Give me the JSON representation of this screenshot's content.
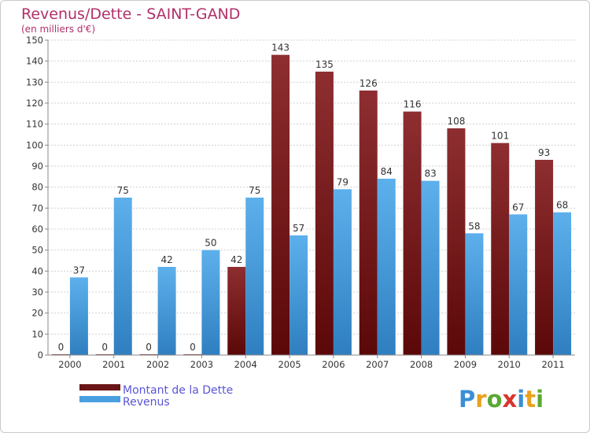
{
  "chart_data": {
    "type": "bar",
    "title": "Revenus/Dette - SAINT-GAND",
    "subtitle": "(en milliers d'€)",
    "categories": [
      "2000",
      "2001",
      "2002",
      "2003",
      "2004",
      "2005",
      "2006",
      "2007",
      "2008",
      "2009",
      "2010",
      "2011"
    ],
    "series": [
      {
        "name": "Montant de la Dette",
        "color": "#7a1c1f",
        "values": [
          0,
          0,
          0,
          0,
          42,
          143,
          135,
          126,
          116,
          108,
          101,
          93
        ]
      },
      {
        "name": "Revenus",
        "color": "#4a9fe0",
        "values": [
          37,
          75,
          42,
          50,
          75,
          57,
          79,
          84,
          83,
          58,
          67,
          68
        ]
      }
    ],
    "ylim": [
      0,
      150
    ],
    "yticks": [
      0,
      10,
      20,
      30,
      40,
      50,
      60,
      70,
      80,
      90,
      100,
      110,
      120,
      130,
      140,
      150
    ],
    "grid": true,
    "legend_position": "bottom-left"
  },
  "branding": {
    "logo_letters": [
      "P",
      "r",
      "o",
      "x",
      "i",
      "t",
      "i"
    ],
    "logo_colors": [
      "#3a8fd6",
      "#e8a21c",
      "#5aa832",
      "#d8342c",
      "#3a8fd6",
      "#e8a21c",
      "#5aa832"
    ]
  }
}
